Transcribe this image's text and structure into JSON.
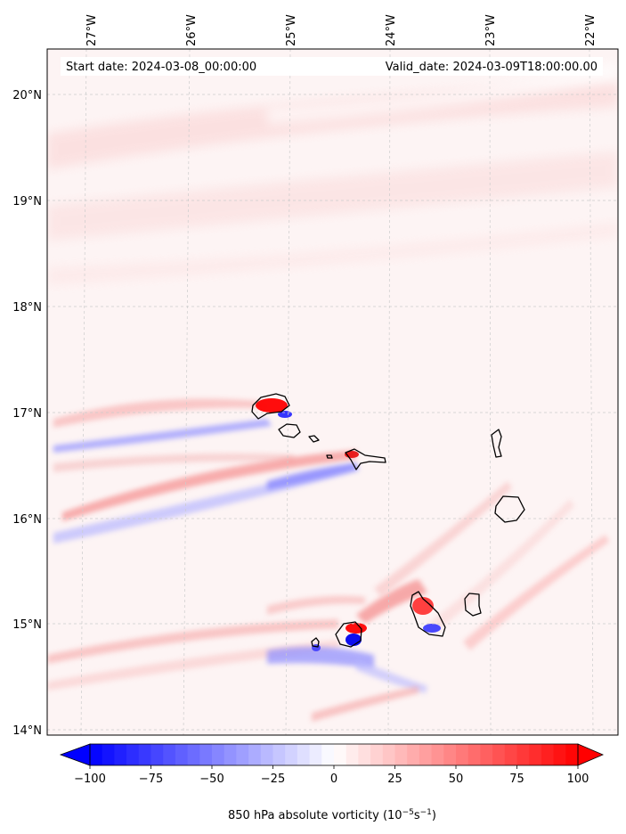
{
  "header": {
    "start_date": "Start date: 2024-03-08_00:00:00",
    "valid_date": "Valid_date: 2024-03-09T18:00:00.00"
  },
  "axes": {
    "lon_labels": [
      "27°W",
      "26°W",
      "25°W",
      "24°W",
      "23°W",
      "22°W"
    ],
    "lat_labels": [
      "20°N",
      "19°N",
      "18°N",
      "17°N",
      "16°N",
      "15°N",
      "14°N"
    ]
  },
  "colorbar": {
    "min": -100,
    "max": 100,
    "tick_labels": [
      "−100",
      "−75",
      "−50",
      "−25",
      "0",
      "25",
      "50",
      "75",
      "100"
    ],
    "label_prefix": "850 hPa absolute vorticity (10",
    "label_exp1": "−5",
    "label_mid": "s",
    "label_exp2": "−1",
    "label_suffix": ")",
    "negative_color": "#0000ff",
    "positive_color": "#ff0000",
    "neutral_color": "#ffffff"
  },
  "map": {
    "background_color": "#fdf4f4",
    "coastline_color": "#000000",
    "islands": [
      "Santo Antão",
      "São Vicente",
      "Santa Luzia",
      "São Nicolau",
      "Sal",
      "Boa Vista",
      "Maio",
      "Santiago",
      "Fogo",
      "Brava"
    ]
  }
}
